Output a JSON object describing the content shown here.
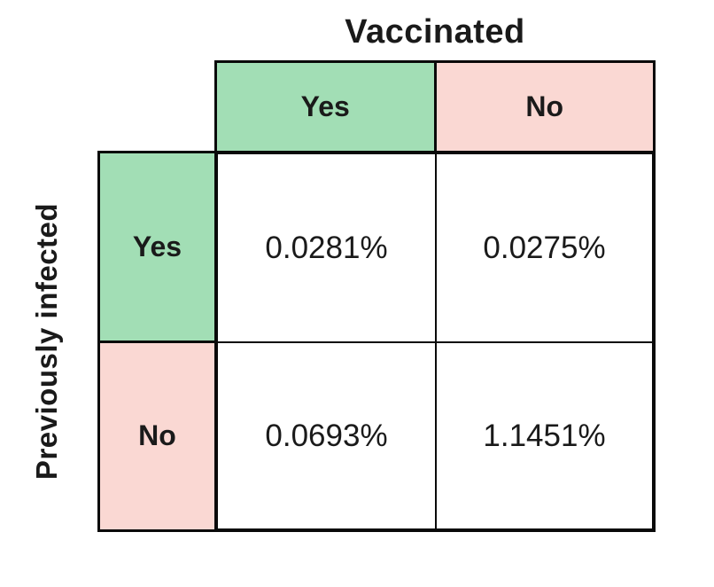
{
  "colors": {
    "green": "#a2deb5",
    "pink": "#fad8d3",
    "border": "#0a0a0a",
    "text": "#1a1a1a",
    "background": "#ffffff"
  },
  "table": {
    "column_axis_title": "Vaccinated",
    "row_axis_title": "Previously infected",
    "column_headers": [
      "Yes",
      "No"
    ],
    "row_headers": [
      "Yes",
      "No"
    ],
    "cells": [
      [
        "0.0281%",
        "0.0275%"
      ],
      [
        "0.0693%",
        "1.1451%"
      ]
    ]
  },
  "chart_data": {
    "type": "table",
    "title": "Vaccinated",
    "column_axis_label": "Vaccinated",
    "row_axis_label": "Previously infected",
    "columns": [
      "Yes",
      "No"
    ],
    "rows": [
      "Yes",
      "No"
    ],
    "unit": "%",
    "values_percent": [
      [
        0.0281,
        0.0275
      ],
      [
        0.0693,
        1.1451
      ]
    ],
    "cell_labels": [
      [
        "0.0281%",
        "0.0275%"
      ],
      [
        "0.0693%",
        "1.1451%"
      ]
    ],
    "header_colors": {
      "yes": "#a2deb5",
      "no": "#fad8d3"
    },
    "legend": "none",
    "grid": "on"
  }
}
